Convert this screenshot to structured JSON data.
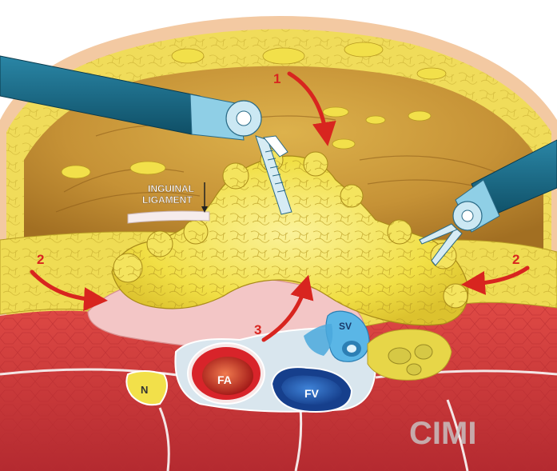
{
  "labels": {
    "ligament_line1": "INGUINAL",
    "ligament_line2": "LIGAMENT",
    "femoral_artery": "FA",
    "femoral_vein": "FV",
    "saphenous_vein": "SV",
    "nerve": "N",
    "watermark": "CIMI"
  },
  "arrows": {
    "arrow_1": "1",
    "arrow_2_left": "2",
    "arrow_2_right": "2",
    "arrow_3": "3"
  },
  "colors": {
    "fat": "#f2e34a",
    "fat_outline": "#a88a18",
    "muscle": "#cf3a3c",
    "artery": "#d8242a",
    "vein": "#1f5fb8",
    "saphenous": "#5ab6e6",
    "arrow": "#d8251f",
    "instrument": "#1a6a86",
    "peritoneum": "#c08a3a"
  }
}
